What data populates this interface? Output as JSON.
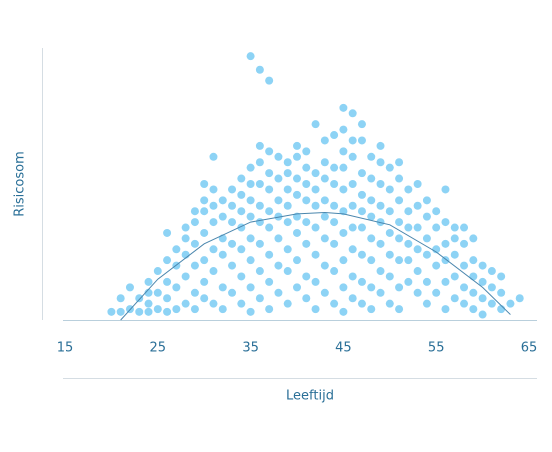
{
  "chart_data": {
    "type": "scatter",
    "x_label": "Leeftijd",
    "y_label": "Risicosom",
    "xlim": [
      15,
      65
    ],
    "xticks": [
      15,
      25,
      35,
      45,
      55,
      65
    ],
    "ylim": [
      0,
      100
    ],
    "color": "#8dd3f5",
    "trend_color": "#4a86ad",
    "x": [
      20,
      21,
      21,
      22,
      22,
      23,
      23,
      24,
      24,
      24,
      24,
      25,
      25,
      25,
      26,
      26,
      26,
      26,
      26,
      27,
      27,
      27,
      27,
      28,
      28,
      28,
      28,
      28,
      29,
      29,
      29,
      29,
      29,
      29,
      30,
      30,
      30,
      30,
      30,
      30,
      30,
      31,
      31,
      31,
      31,
      31,
      31,
      31,
      32,
      32,
      32,
      32,
      32,
      32,
      33,
      33,
      33,
      33,
      33,
      33,
      34,
      34,
      34,
      34,
      34,
      34,
      34,
      35,
      35,
      35,
      35,
      35,
      35,
      35,
      35,
      35,
      36,
      36,
      36,
      36,
      36,
      36,
      36,
      36,
      36,
      37,
      37,
      37,
      37,
      37,
      37,
      37,
      37,
      37,
      38,
      38,
      38,
      38,
      38,
      38,
      38,
      39,
      39,
      39,
      39,
      39,
      39,
      39,
      39,
      40,
      40,
      40,
      40,
      40,
      40,
      40,
      40,
      41,
      41,
      41,
      41,
      41,
      41,
      41,
      41,
      42,
      42,
      42,
      42,
      42,
      42,
      42,
      42,
      43,
      43,
      43,
      43,
      43,
      43,
      43,
      43,
      44,
      44,
      44,
      44,
      44,
      44,
      44,
      44,
      45,
      45,
      45,
      45,
      45,
      45,
      45,
      45,
      45,
      45,
      46,
      46,
      46,
      46,
      46,
      46,
      46,
      46,
      46,
      47,
      47,
      47,
      47,
      47,
      47,
      47,
      47,
      47,
      48,
      48,
      48,
      48,
      48,
      48,
      48,
      48,
      49,
      49,
      49,
      49,
      49,
      49,
      49,
      49,
      50,
      50,
      50,
      50,
      50,
      50,
      50,
      51,
      51,
      51,
      51,
      51,
      51,
      51,
      51,
      52,
      52,
      52,
      52,
      52,
      52,
      53,
      53,
      53,
      53,
      53,
      53,
      54,
      54,
      54,
      54,
      54,
      54,
      55,
      55,
      55,
      55,
      55,
      56,
      56,
      56,
      56,
      56,
      56,
      57,
      57,
      57,
      57,
      57,
      58,
      58,
      58,
      58,
      58,
      59,
      59,
      59,
      59,
      59,
      60,
      60,
      60,
      60,
      61,
      61,
      61,
      62,
      62,
      62,
      63,
      64
    ],
    "values": [
      3,
      3,
      8,
      4,
      12,
      3,
      8,
      3,
      6,
      10,
      14,
      4,
      10,
      18,
      3,
      8,
      14,
      22,
      32,
      4,
      12,
      20,
      26,
      6,
      16,
      24,
      30,
      34,
      4,
      10,
      20,
      28,
      36,
      40,
      8,
      14,
      22,
      32,
      40,
      44,
      50,
      6,
      18,
      26,
      36,
      42,
      48,
      60,
      4,
      12,
      24,
      30,
      38,
      44,
      10,
      20,
      28,
      36,
      42,
      48,
      6,
      16,
      26,
      34,
      40,
      46,
      52,
      3,
      12,
      22,
      30,
      38,
      44,
      50,
      56,
      97,
      8,
      18,
      28,
      36,
      42,
      50,
      58,
      64,
      92,
      4,
      14,
      24,
      34,
      40,
      48,
      54,
      62,
      88,
      10,
      20,
      30,
      38,
      44,
      52,
      60,
      6,
      18,
      26,
      36,
      42,
      48,
      54,
      58,
      12,
      22,
      32,
      38,
      46,
      52,
      60,
      64,
      8,
      16,
      28,
      36,
      44,
      50,
      56,
      62,
      4,
      14,
      24,
      34,
      42,
      48,
      54,
      72,
      10,
      20,
      30,
      38,
      44,
      52,
      58,
      66,
      6,
      18,
      28,
      36,
      42,
      50,
      56,
      68,
      3,
      12,
      22,
      32,
      40,
      48,
      56,
      62,
      70,
      78,
      8,
      16,
      26,
      34,
      42,
      50,
      60,
      66,
      76,
      6,
      14,
      24,
      34,
      40,
      46,
      54,
      66,
      72,
      4,
      12,
      22,
      30,
      38,
      44,
      52,
      60,
      10,
      18,
      28,
      36,
      42,
      50,
      58,
      64,
      6,
      16,
      24,
      32,
      40,
      48,
      56,
      4,
      12,
      22,
      30,
      36,
      44,
      52,
      58,
      14,
      22,
      28,
      34,
      40,
      48,
      10,
      18,
      26,
      34,
      42,
      50,
      6,
      14,
      24,
      30,
      38,
      44,
      10,
      20,
      26,
      34,
      40,
      4,
      14,
      22,
      28,
      36,
      48,
      8,
      16,
      24,
      30,
      34,
      6,
      12,
      20,
      28,
      34,
      4,
      10,
      16,
      22,
      30,
      2,
      8,
      14,
      20,
      6,
      12,
      18,
      4,
      10,
      16,
      6,
      8
    ],
    "trend": {
      "x": [
        21,
        25,
        30,
        35,
        40,
        43,
        45,
        50,
        55,
        60,
        63
      ],
      "values": [
        0,
        15,
        28,
        36,
        39,
        39.5,
        39,
        35,
        25,
        12,
        2
      ]
    }
  }
}
